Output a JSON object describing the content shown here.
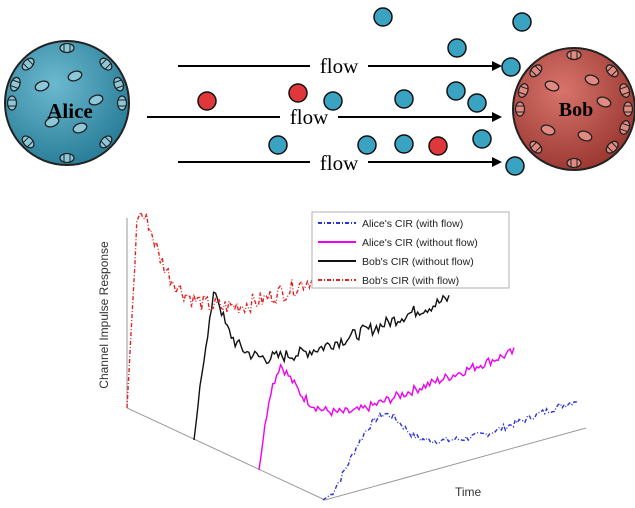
{
  "diagram": {
    "sender_label": "Alice",
    "receiver_label": "Bob",
    "flow_labels": [
      "flow",
      "flow",
      "flow"
    ]
  },
  "colors": {
    "alice_fill": "#3d93ab",
    "bob_fill": "#b64a42",
    "molecule_blue": "#3aa3c2",
    "molecule_red": "#e0373a"
  },
  "chart_data": {
    "type": "line",
    "ylabel": "Channel Impulse Response",
    "xlabel": "Time",
    "legend_position": "top-right",
    "series": [
      {
        "name": "Alice's CIR (with flow)",
        "color": "#2a34d8",
        "style": "dash-dot",
        "values": [
          0,
          0.05,
          0.22,
          0.42,
          0.62,
          0.78,
          0.88,
          0.92,
          0.85,
          0.7,
          0.55,
          0.45,
          0.4,
          0.36,
          0.33,
          0.31,
          0.29,
          0.28,
          0.27,
          0.27,
          0.28,
          0.29,
          0.3,
          0.31,
          0.33,
          0.34,
          0.35,
          0.36,
          0.37,
          0.38
        ]
      },
      {
        "name": "Alice's CIR (without flow)",
        "color": "#f000f0",
        "style": "solid",
        "values": [
          0,
          0.7,
          0.95,
          0.78,
          0.6,
          0.48,
          0.4,
          0.35,
          0.32,
          0.3,
          0.3,
          0.31,
          0.32,
          0.33,
          0.34,
          0.35,
          0.36,
          0.37,
          0.38,
          0.39,
          0.4,
          0.41,
          0.42,
          0.43,
          0.44
        ]
      },
      {
        "name": "Bob's CIR (without flow)",
        "color": "#111111",
        "style": "solid",
        "values": [
          0,
          0.6,
          1.0,
          0.72,
          0.58,
          0.5,
          0.45,
          0.42,
          0.41,
          0.4,
          0.39,
          0.39,
          0.39,
          0.4,
          0.4,
          0.41,
          0.42,
          0.42,
          0.43,
          0.44,
          0.45,
          0.46,
          0.46,
          0.47,
          0.48
        ]
      },
      {
        "name": "Bob's CIR (with flow)",
        "color": "#e52222",
        "style": "dash-dot",
        "values": [
          0,
          0.97,
          0.9,
          0.72,
          0.6,
          0.52,
          0.46,
          0.42,
          0.39,
          0.37,
          0.36,
          0.35,
          0.35,
          0.35,
          0.36,
          0.36,
          0.37,
          0.38,
          0.38,
          0.39,
          0.4,
          0.4,
          0.41,
          0.42,
          0.43
        ]
      }
    ]
  }
}
